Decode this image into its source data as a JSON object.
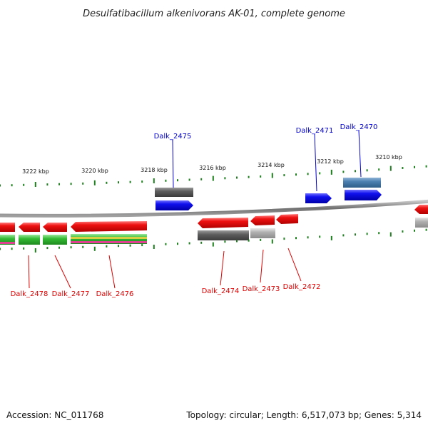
{
  "title": "Desulfatibacillum alkenivorans AK-01, complete genome",
  "footer": {
    "accession": "Accession: NC_011768",
    "stats": "Topology: circular; Length: 6,517,073 bp; Genes: 5,314"
  },
  "colors": {
    "backbone": "#8a8a8a",
    "tick": "#1e7f1e",
    "top_label": "#0000cc",
    "bottom_label": "#dd0000",
    "gene_red": "#ee1111",
    "gene_blue": "#1010ee",
    "gene_gray": "#666666",
    "gene_lightgray": "#b0b0b0",
    "gene_steelblue": "#4a7fb0",
    "gene_green": "#33bb33"
  },
  "scale_labels": [
    "3222 kbp",
    "3220 kbp",
    "3218 kbp",
    "3216 kbp",
    "3214 kbp",
    "3212 kbp",
    "3210 kbp"
  ],
  "genes": {
    "top": [
      {
        "label": "Dalk_2475"
      },
      {
        "label": "Dalk_2471"
      },
      {
        "label": "Dalk_2470"
      }
    ],
    "bottom": [
      {
        "label": "Dalk_2478"
      },
      {
        "label": "Dalk_2477"
      },
      {
        "label": "Dalk_2476"
      },
      {
        "label": "Dalk_2474"
      },
      {
        "label": "Dalk_2473"
      },
      {
        "label": "Dalk_2472"
      }
    ]
  }
}
